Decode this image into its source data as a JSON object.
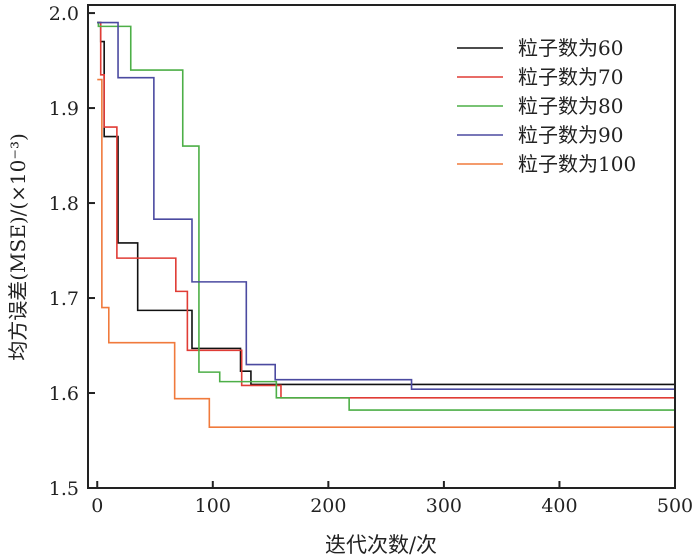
{
  "chart_data": {
    "type": "line",
    "title": "",
    "xlabel": "迭代次数/次",
    "ylabel": "均方误差(MSE)/(×10⁻³)",
    "xlim": [
      -8,
      500
    ],
    "ylim": [
      1.5,
      2.0085
    ],
    "xticks": [
      0,
      100,
      200,
      300,
      400,
      500
    ],
    "yticks": [
      1.5,
      1.6,
      1.7,
      1.8,
      1.9,
      2.0
    ],
    "ytick_labels": [
      "1.5",
      "1.6",
      "1.7",
      "1.8",
      "1.9",
      "2.0"
    ],
    "legend_position": "top-right",
    "step": true,
    "series": [
      {
        "name": "粒子数为60",
        "color": "#111111",
        "x": [
          0,
          3,
          6,
          18,
          35,
          82,
          124,
          133,
          500
        ],
        "y": [
          1.99,
          1.97,
          1.87,
          1.758,
          1.687,
          1.647,
          1.623,
          1.609,
          1.609
        ]
      },
      {
        "name": "粒子数为70",
        "color": "#e03c35",
        "x": [
          0,
          3,
          6,
          17,
          68,
          78,
          125,
          159,
          500
        ],
        "y": [
          1.99,
          1.935,
          1.88,
          1.742,
          1.707,
          1.645,
          1.608,
          1.595,
          1.595
        ]
      },
      {
        "name": "粒子数为80",
        "color": "#4daf47",
        "x": [
          0,
          1,
          29,
          74,
          88,
          106,
          155,
          218,
          500
        ],
        "y": [
          1.99,
          1.986,
          1.94,
          1.86,
          1.622,
          1.612,
          1.595,
          1.582,
          1.582
        ]
      },
      {
        "name": "粒子数为90",
        "color": "#4b4aa0",
        "x": [
          0,
          18,
          49,
          82,
          129,
          154,
          272,
          500
        ],
        "y": [
          1.99,
          1.932,
          1.783,
          1.717,
          1.63,
          1.614,
          1.604,
          1.604
        ]
      },
      {
        "name": "粒子数为100",
        "color": "#f07a3c",
        "x": [
          0,
          4,
          10,
          67,
          97,
          500
        ],
        "y": [
          1.93,
          1.69,
          1.653,
          1.594,
          1.564,
          1.564
        ]
      }
    ]
  }
}
